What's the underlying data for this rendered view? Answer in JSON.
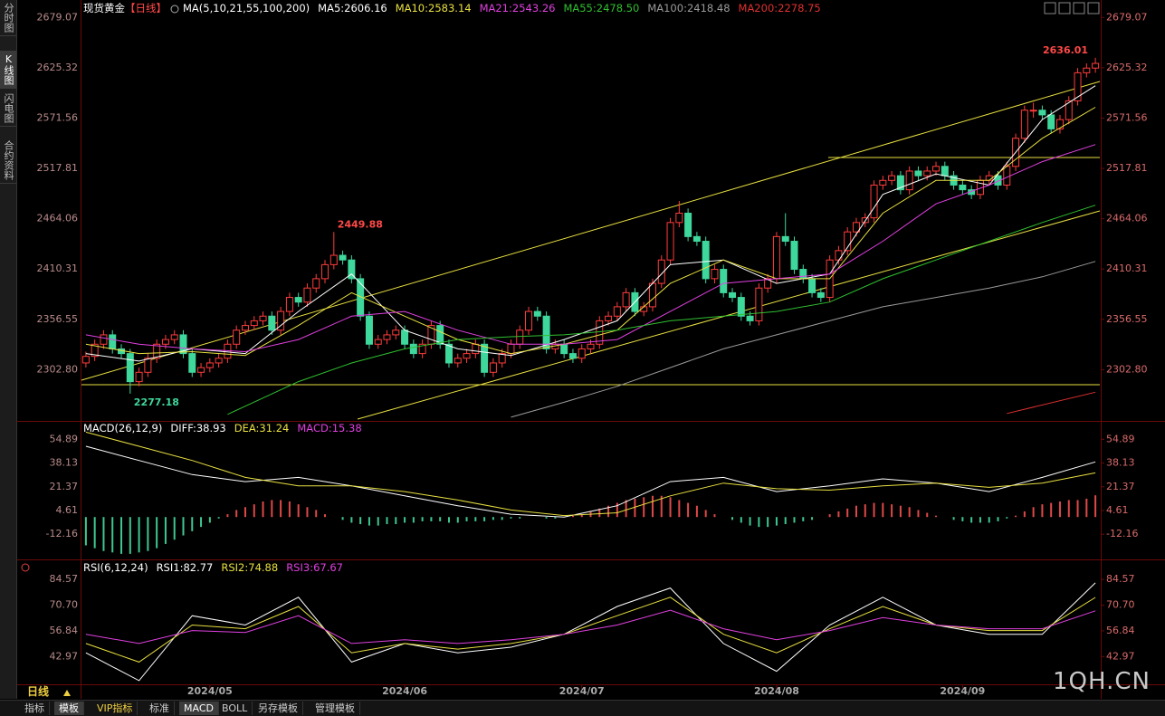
{
  "ui": {
    "side_tabs": [
      "分时图",
      "K线图",
      "闪电图",
      "合约资料"
    ],
    "period_button": "日线",
    "bottom_tabs": [
      "指标",
      "模板",
      "VIP指标",
      "标准",
      "MACD",
      "BOLL",
      "另存模板",
      "管理模板"
    ],
    "watermark": "1QH.CN"
  },
  "chart_data": [
    {
      "type": "candlestick",
      "title": "现货黄金",
      "period": "【日线】",
      "indicator": "MA(5,10,21,55,100,200)",
      "up_color": "#ff3c3c",
      "down_color": "#3ed79c",
      "xlim": [
        -0.5,
        114.5
      ],
      "ylim": [
        2250,
        2690
      ],
      "yticks": [
        2679.07,
        2625.32,
        2571.56,
        2517.81,
        2464.06,
        2410.31,
        2356.55,
        {
          "value": 2302.8,
          "label": "2302.80"
        }
      ],
      "open": [
        2310,
        2317,
        2330,
        2340,
        2325,
        2320,
        2290,
        2300,
        2315,
        2330,
        2335,
        2340,
        2320,
        2300,
        2305,
        2310,
        2315,
        2330,
        2345,
        2350,
        2355,
        2360,
        2345,
        2365,
        2380,
        2375,
        2390,
        2400,
        2415,
        2425,
        2420,
        2400,
        2360,
        2330,
        2335,
        2340,
        2345,
        2330,
        2320,
        2330,
        2350,
        2330,
        2310,
        2315,
        2320,
        2330,
        2300,
        2310,
        2320,
        2330,
        2345,
        2365,
        2360,
        2325,
        2330,
        2320,
        2315,
        2325,
        2330,
        2355,
        2360,
        2370,
        2385,
        2365,
        2370,
        2395,
        2420,
        2460,
        2470,
        2445,
        2440,
        2400,
        2410,
        2385,
        2380,
        2360,
        2355,
        2390,
        2400,
        2445,
        2440,
        2410,
        2400,
        2385,
        2380,
        2420,
        2430,
        2450,
        2460,
        2465,
        2500,
        2505,
        2510,
        2495,
        2515,
        2510,
        2515,
        2520,
        2510,
        2500,
        2495,
        2490,
        2505,
        2510,
        2500,
        2520,
        2550,
        2580,
        2580,
        2575,
        2560,
        2570,
        2590,
        2620,
        2625
      ],
      "high": [
        2322,
        2335,
        2345,
        2345,
        2330,
        2325,
        2305,
        2320,
        2335,
        2340,
        2345,
        2345,
        2325,
        2310,
        2315,
        2320,
        2335,
        2350,
        2355,
        2360,
        2365,
        2365,
        2370,
        2385,
        2385,
        2395,
        2405,
        2420,
        2449.88,
        2430,
        2425,
        2405,
        2365,
        2340,
        2345,
        2350,
        2350,
        2335,
        2335,
        2355,
        2355,
        2335,
        2320,
        2325,
        2335,
        2335,
        2315,
        2325,
        2335,
        2350,
        2370,
        2370,
        2365,
        2335,
        2335,
        2325,
        2330,
        2335,
        2360,
        2365,
        2375,
        2390,
        2390,
        2375,
        2400,
        2425,
        2465,
        2483,
        2475,
        2450,
        2445,
        2415,
        2415,
        2390,
        2385,
        2365,
        2395,
        2405,
        2450,
        2470,
        2445,
        2415,
        2405,
        2390,
        2425,
        2435,
        2455,
        2465,
        2470,
        2505,
        2510,
        2515,
        2515,
        2520,
        2520,
        2520,
        2525,
        2525,
        2515,
        2505,
        2500,
        2510,
        2515,
        2515,
        2525,
        2555,
        2585,
        2588,
        2585,
        2580,
        2575,
        2595,
        2625,
        2630,
        2636.01
      ],
      "low": [
        2305,
        2312,
        2325,
        2320,
        2315,
        2277.18,
        2285,
        2295,
        2310,
        2325,
        2330,
        2315,
        2295,
        2295,
        2300,
        2305,
        2310,
        2325,
        2340,
        2345,
        2350,
        2340,
        2340,
        2360,
        2370,
        2370,
        2385,
        2395,
        2410,
        2415,
        2395,
        2355,
        2325,
        2325,
        2330,
        2335,
        2325,
        2315,
        2315,
        2325,
        2325,
        2305,
        2305,
        2310,
        2315,
        2295,
        2295,
        2305,
        2315,
        2325,
        2340,
        2355,
        2320,
        2320,
        2315,
        2310,
        2310,
        2320,
        2325,
        2350,
        2355,
        2365,
        2360,
        2360,
        2365,
        2390,
        2415,
        2455,
        2440,
        2435,
        2395,
        2395,
        2380,
        2375,
        2355,
        2350,
        2350,
        2385,
        2395,
        2435,
        2405,
        2395,
        2380,
        2375,
        2375,
        2415,
        2425,
        2445,
        2455,
        2460,
        2495,
        2500,
        2490,
        2490,
        2505,
        2505,
        2510,
        2505,
        2495,
        2490,
        2485,
        2485,
        2500,
        2495,
        2495,
        2515,
        2545,
        2572,
        2570,
        2555,
        2555,
        2565,
        2585,
        2615,
        2620
      ],
      "close": [
        2317,
        2330,
        2340,
        2325,
        2320,
        2290,
        2300,
        2315,
        2330,
        2335,
        2340,
        2320,
        2300,
        2305,
        2310,
        2315,
        2330,
        2345,
        2350,
        2355,
        2360,
        2345,
        2365,
        2380,
        2375,
        2390,
        2400,
        2415,
        2425,
        2420,
        2400,
        2360,
        2330,
        2335,
        2340,
        2345,
        2330,
        2320,
        2330,
        2350,
        2330,
        2310,
        2315,
        2320,
        2330,
        2300,
        2310,
        2320,
        2330,
        2345,
        2365,
        2360,
        2325,
        2330,
        2320,
        2315,
        2325,
        2330,
        2355,
        2360,
        2370,
        2385,
        2365,
        2370,
        2395,
        2420,
        2460,
        2470,
        2445,
        2440,
        2400,
        2410,
        2385,
        2380,
        2360,
        2355,
        2390,
        2400,
        2445,
        2440,
        2410,
        2400,
        2385,
        2380,
        2420,
        2430,
        2450,
        2460,
        2465,
        2500,
        2505,
        2510,
        2495,
        2515,
        2510,
        2515,
        2520,
        2510,
        2500,
        2495,
        2490,
        2505,
        2510,
        2500,
        2520,
        2550,
        2580,
        2580,
        2575,
        2560,
        2570,
        2590,
        2620,
        2625,
        2630
      ],
      "series": [
        {
          "name": "MA5",
          "color": "#ffffff",
          "x": [
            0,
            6,
            12,
            18,
            24,
            30,
            36,
            42,
            48,
            54,
            60,
            66,
            72,
            78,
            84,
            90,
            96,
            102,
            108,
            114
          ],
          "values": [
            2320,
            2312,
            2325,
            2320,
            2365,
            2405,
            2345,
            2325,
            2318,
            2335,
            2355,
            2415,
            2420,
            2395,
            2405,
            2490,
            2512,
            2500,
            2570,
            2606.16
          ]
        },
        {
          "name": "MA10",
          "color": "#e8e040",
          "x": [
            0,
            6,
            12,
            18,
            24,
            30,
            36,
            42,
            48,
            54,
            60,
            66,
            72,
            78,
            84,
            90,
            96,
            102,
            108,
            114
          ],
          "values": [
            2330,
            2320,
            2322,
            2318,
            2350,
            2385,
            2360,
            2335,
            2320,
            2330,
            2345,
            2395,
            2420,
            2400,
            2400,
            2470,
            2505,
            2505,
            2550,
            2583.14
          ]
        },
        {
          "name": "MA21",
          "color": "#e040e0",
          "x": [
            0,
            6,
            12,
            18,
            24,
            30,
            36,
            42,
            48,
            54,
            60,
            66,
            72,
            78,
            84,
            90,
            96,
            102,
            108,
            114
          ],
          "values": [
            2340,
            2330,
            2325,
            2322,
            2335,
            2360,
            2365,
            2345,
            2330,
            2330,
            2335,
            2365,
            2395,
            2400,
            2405,
            2440,
            2480,
            2500,
            2525,
            2543.26
          ]
        },
        {
          "name": "MA55",
          "color": "#30c030",
          "x": [
            16,
            24,
            30,
            36,
            42,
            48,
            54,
            60,
            66,
            72,
            78,
            84,
            90,
            96,
            102,
            108,
            114
          ],
          "values": [
            2255,
            2290,
            2310,
            2325,
            2335,
            2338,
            2340,
            2345,
            2355,
            2360,
            2365,
            2375,
            2400,
            2420,
            2440,
            2460,
            2478.5
          ],
          "value_labels": [
            null,
            null,
            null,
            null,
            null,
            null,
            null,
            null,
            null,
            null,
            null,
            null,
            null,
            null,
            null,
            null,
            "2478.50"
          ]
        },
        {
          "name": "MA100",
          "color": "#9a9a9a",
          "x": [
            48,
            54,
            60,
            66,
            72,
            78,
            84,
            90,
            96,
            102,
            108,
            114
          ],
          "values": [
            2252,
            2268,
            2285,
            2305,
            2325,
            2340,
            2355,
            2370,
            2380,
            2390,
            2402,
            2418.48
          ]
        },
        {
          "name": "MA200",
          "color": "#e03030",
          "x": [
            104,
            114
          ],
          "values": [
            2256,
            2278.75
          ]
        }
      ]
    },
    {
      "type": "macd",
      "title": "MACD(26,12,9)",
      "xlim": [
        -0.5,
        114.5
      ],
      "ylim": [
        -28,
        66
      ],
      "yticks": [
        54.89,
        38.13,
        21.37,
        4.61,
        -12.16
      ],
      "histogram": {
        "name": "MACD",
        "color": "#e040e0",
        "up_color": "#e04848",
        "down_color": "#3ec890",
        "values": [
          -20,
          -22,
          -24,
          -25,
          -26,
          -26,
          -25,
          -24,
          -22,
          -19,
          -16,
          -13,
          -10,
          -7,
          -4,
          -1,
          2,
          5,
          7,
          9,
          11,
          12,
          12,
          11,
          9,
          7,
          5,
          2,
          0,
          -2,
          -4,
          -5,
          -6,
          -6,
          -5,
          -5,
          -4,
          -4,
          -3,
          -3,
          -3,
          -4,
          -4,
          -3,
          -3,
          -3,
          -2,
          -2,
          -1,
          -1,
          0,
          0,
          -1,
          -1,
          0,
          1,
          2,
          4,
          6,
          8,
          10,
          12,
          13,
          14,
          15,
          15,
          14,
          12,
          10,
          8,
          5,
          2,
          0,
          -2,
          -4,
          -6,
          -7,
          -7,
          -6,
          -5,
          -4,
          -3,
          -2,
          0,
          2,
          4,
          6,
          8,
          9,
          10,
          10,
          9,
          8,
          7,
          5,
          3,
          1,
          0,
          -2,
          -3,
          -4,
          -4,
          -4,
          -3,
          -1,
          1,
          4,
          7,
          9,
          10,
          11,
          12,
          12,
          13,
          15.38
        ]
      },
      "series": [
        {
          "name": "DIFF",
          "color": "#ffffff",
          "x": [
            0,
            6,
            12,
            18,
            24,
            30,
            36,
            42,
            48,
            54,
            60,
            66,
            72,
            78,
            84,
            90,
            96,
            102,
            108,
            114
          ],
          "values": [
            50,
            40,
            30,
            25,
            28,
            22,
            15,
            8,
            2,
            0,
            8,
            25,
            28,
            18,
            22,
            27,
            24,
            18,
            28,
            38.93
          ]
        },
        {
          "name": "DEA",
          "color": "#e8e040",
          "x": [
            0,
            6,
            12,
            18,
            24,
            30,
            36,
            42,
            48,
            54,
            60,
            66,
            72,
            78,
            84,
            90,
            96,
            102,
            108,
            114
          ],
          "values": [
            60,
            50,
            40,
            28,
            22,
            22,
            18,
            12,
            5,
            1,
            3,
            15,
            24,
            20,
            19,
            22,
            24,
            21,
            24,
            31.24
          ]
        }
      ]
    },
    {
      "type": "rsi",
      "title": "RSI(6,12,24)",
      "xlim": [
        -0.5,
        114.5
      ],
      "ylim": [
        27,
        92
      ],
      "yticks": [
        84.57,
        {
          "value": 70.7,
          "label": "70.70"
        },
        56.84,
        42.97
      ],
      "xticks": [
        {
          "value": 14,
          "label": "2024/05"
        },
        {
          "value": 36,
          "label": "2024/06"
        },
        {
          "value": 56,
          "label": "2024/07"
        },
        {
          "value": 78,
          "label": "2024/08"
        },
        {
          "value": 99,
          "label": "2024/09"
        }
      ],
      "series": [
        {
          "name": "RSI1",
          "color": "#ffffff",
          "x": [
            0,
            6,
            12,
            18,
            24,
            30,
            36,
            42,
            48,
            54,
            60,
            66,
            72,
            78,
            84,
            90,
            96,
            102,
            108,
            114
          ],
          "values": [
            45,
            30,
            65,
            60,
            75,
            40,
            50,
            45,
            48,
            55,
            70,
            80,
            50,
            35,
            60,
            75,
            60,
            55,
            55,
            82.77
          ]
        },
        {
          "name": "RSI2",
          "color": "#e8e040",
          "x": [
            0,
            6,
            12,
            18,
            24,
            30,
            36,
            42,
            48,
            54,
            60,
            66,
            72,
            78,
            84,
            90,
            96,
            102,
            108,
            114
          ],
          "values": [
            50,
            40,
            60,
            58,
            70,
            45,
            50,
            47,
            50,
            55,
            65,
            75,
            55,
            45,
            58,
            70,
            60,
            57,
            57,
            74.88
          ]
        },
        {
          "name": "RSI3",
          "color": "#e040e0",
          "x": [
            0,
            6,
            12,
            18,
            24,
            30,
            36,
            42,
            48,
            54,
            60,
            66,
            72,
            78,
            84,
            90,
            96,
            102,
            108,
            114
          ],
          "values": [
            55,
            50,
            57,
            56,
            65,
            50,
            52,
            50,
            52,
            55,
            60,
            68,
            58,
            52,
            57,
            64,
            60,
            58,
            58,
            67.67
          ]
        }
      ]
    }
  ]
}
